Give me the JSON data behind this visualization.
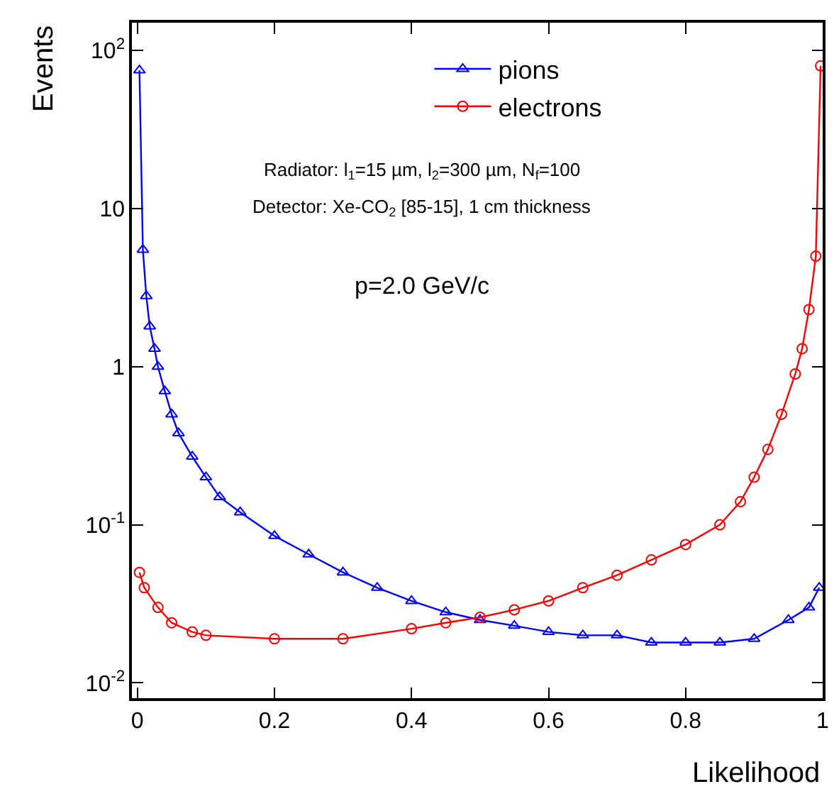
{
  "chart_data": {
    "type": "line",
    "xlabel": "Likelihood",
    "ylabel": "Events",
    "log": "y",
    "legend": "top",
    "line_style": "solid",
    "xlim": [
      -0.008,
      1.0
    ],
    "xticks": [
      0,
      0.2,
      0.4,
      0.6,
      0.8,
      1
    ],
    "ylim": [
      0.008,
      150
    ],
    "yticks": [
      {
        "value": 0.01,
        "label": "10$^{-2}$"
      },
      {
        "value": 0.1,
        "label": "10$^{-1}$"
      },
      1,
      10,
      {
        "value": 100,
        "label": "10$^{2}$"
      }
    ],
    "annotations": [
      "Radiator: l$_{1}$=15 µm, l$_{2}$=300 µm, N$_{f}$=100",
      "Detector: Xe-CO$_{2}$ [85-15], 1 cm thickness",
      "p=2.0 GeV/c"
    ],
    "series": [
      {
        "name": "pions",
        "color": "#0000ff",
        "marker": "triangle",
        "x": [
          0.003,
          0.008,
          0.013,
          0.018,
          0.025,
          0.03,
          0.04,
          0.05,
          0.06,
          0.08,
          0.1,
          0.12,
          0.15,
          0.2,
          0.25,
          0.3,
          0.35,
          0.4,
          0.45,
          0.5,
          0.55,
          0.6,
          0.65,
          0.7,
          0.75,
          0.8,
          0.85,
          0.9,
          0.95,
          0.98,
          0.995
        ],
        "values": [
          75,
          5.5,
          2.8,
          1.8,
          1.3,
          1.0,
          0.7,
          0.5,
          0.38,
          0.27,
          0.2,
          0.15,
          0.12,
          0.085,
          0.065,
          0.05,
          0.04,
          0.033,
          0.028,
          0.025,
          0.023,
          0.021,
          0.02,
          0.02,
          0.018,
          0.018,
          0.018,
          0.019,
          0.025,
          0.03,
          0.04
        ]
      },
      {
        "name": "electrons",
        "color": "#ff0000",
        "marker": "circle",
        "x": [
          0.003,
          0.01,
          0.03,
          0.05,
          0.08,
          0.1,
          0.2,
          0.3,
          0.4,
          0.45,
          0.5,
          0.55,
          0.6,
          0.65,
          0.7,
          0.75,
          0.8,
          0.85,
          0.88,
          0.9,
          0.92,
          0.94,
          0.96,
          0.97,
          0.98,
          0.99,
          0.997
        ],
        "values": [
          0.05,
          0.04,
          0.03,
          0.024,
          0.021,
          0.02,
          0.019,
          0.019,
          0.022,
          0.024,
          0.026,
          0.029,
          0.033,
          0.04,
          0.048,
          0.06,
          0.075,
          0.1,
          0.14,
          0.2,
          0.3,
          0.5,
          0.9,
          1.3,
          2.3,
          5,
          80
        ]
      }
    ]
  }
}
